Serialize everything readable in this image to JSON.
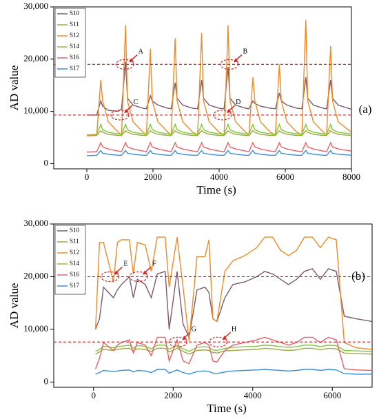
{
  "chart_data": [
    {
      "type": "line",
      "panel_label": "(a)",
      "x_label": "Time (s)",
      "y_label": "AD value",
      "xlim": [
        -1000,
        8000
      ],
      "xticks": [
        0,
        2000,
        4000,
        6000,
        8000
      ],
      "ylim": [
        -1000,
        30000
      ],
      "yticks": [
        {
          "value": 0,
          "label": "0"
        },
        {
          "value": 10000,
          "label": "10,000"
        },
        {
          "value": 20000,
          "label": "20,000"
        },
        {
          "value": 30000,
          "label": "30,000"
        }
      ],
      "ref_lines": [
        19000,
        9300
      ],
      "ref_color": "#e02020",
      "annotations": [
        {
          "text": "A",
          "x": 1150,
          "y": 19000
        },
        {
          "text": "B",
          "x": 4310,
          "y": 19000
        },
        {
          "text": "C",
          "x": 1000,
          "y": 9300
        },
        {
          "text": "D",
          "x": 4100,
          "y": 9300
        }
      ],
      "x": [
        0,
        300,
        420,
        480,
        650,
        950,
        1050,
        1170,
        1230,
        1400,
        1700,
        1800,
        1920,
        1980,
        2150,
        2450,
        2550,
        2670,
        2730,
        2900,
        3200,
        3350,
        3470,
        3530,
        3700,
        4000,
        4150,
        4270,
        4330,
        4500,
        4800,
        4900,
        5020,
        5080,
        5250,
        5550,
        5700,
        5820,
        5880,
        6050,
        6350,
        6500,
        6620,
        6680,
        6850,
        7150,
        7250,
        7370,
        7430,
        7600,
        8000
      ],
      "series": [
        {
          "name": "S10",
          "color": "#7b5a6b",
          "values": [
            9300,
            9300,
            12000,
            11000,
            10200,
            10000,
            10500,
            19500,
            12500,
            11200,
            10600,
            10500,
            13000,
            12000,
            11200,
            10600,
            10500,
            15500,
            12500,
            11200,
            10600,
            10500,
            16000,
            12500,
            11200,
            10600,
            10500,
            18500,
            12500,
            11200,
            10600,
            10500,
            12000,
            11500,
            11000,
            10600,
            10500,
            13500,
            12000,
            11200,
            10600,
            10500,
            16500,
            12500,
            11200,
            10600,
            10500,
            16000,
            12500,
            11200,
            10400
          ]
        },
        {
          "name": "S11",
          "color": "#9aab3a",
          "values": [
            5300,
            5400,
            6300,
            6000,
            5600,
            5400,
            5400,
            6300,
            6000,
            5600,
            5400,
            5400,
            6300,
            6000,
            5600,
            5400,
            5400,
            6300,
            6000,
            5600,
            5400,
            5400,
            6300,
            6000,
            5600,
            5400,
            5400,
            6300,
            6000,
            5600,
            5400,
            5400,
            6300,
            6000,
            5600,
            5400,
            5400,
            6300,
            6000,
            5600,
            5400,
            5400,
            6300,
            6000,
            5600,
            5400,
            5400,
            6300,
            6000,
            5600,
            5400
          ]
        },
        {
          "name": "S12",
          "color": "#f08a24",
          "values": [
            5300,
            5500,
            16000,
            12000,
            8000,
            6000,
            5500,
            26500,
            12000,
            8000,
            6000,
            5500,
            22000,
            12000,
            8000,
            6000,
            5500,
            24000,
            12000,
            8000,
            6000,
            5500,
            25000,
            12000,
            8000,
            6000,
            5500,
            26500,
            12000,
            8000,
            6000,
            5500,
            16500,
            12000,
            8000,
            6000,
            5500,
            19000,
            12000,
            8000,
            6000,
            5500,
            27500,
            12000,
            8000,
            6000,
            5500,
            22500,
            12000,
            8000,
            6000
          ]
        },
        {
          "name": "S14",
          "color": "#7ec83a",
          "values": [
            5500,
            5600,
            7500,
            6500,
            6000,
            5700,
            5600,
            7500,
            6500,
            6000,
            5700,
            5600,
            7500,
            6500,
            6000,
            5700,
            5600,
            7500,
            6500,
            6000,
            5700,
            5600,
            7500,
            6500,
            6000,
            5700,
            5600,
            7500,
            6500,
            6000,
            5700,
            5600,
            7500,
            6500,
            6000,
            5700,
            5600,
            7500,
            6500,
            6000,
            5700,
            5600,
            7500,
            6500,
            6000,
            5700,
            5600,
            7500,
            6500,
            6000,
            5700
          ]
        },
        {
          "name": "S16",
          "color": "#e8606a",
          "values": [
            2200,
            2300,
            4000,
            3200,
            2800,
            2400,
            2300,
            4000,
            3200,
            2800,
            2400,
            2300,
            4000,
            3200,
            2800,
            2400,
            2300,
            4000,
            3200,
            2800,
            2400,
            2300,
            4000,
            3200,
            2800,
            2400,
            2300,
            4000,
            3200,
            2800,
            2400,
            2300,
            4000,
            3200,
            2800,
            2400,
            2300,
            4000,
            3200,
            2800,
            2400,
            2300,
            4000,
            3200,
            2800,
            2400,
            2300,
            4000,
            3200,
            2800,
            2400
          ]
        },
        {
          "name": "S17",
          "color": "#3a8ee0",
          "values": [
            1500,
            1600,
            2500,
            2000,
            1800,
            1600,
            1600,
            2500,
            2000,
            1800,
            1600,
            1600,
            2500,
            2000,
            1800,
            1600,
            1600,
            2500,
            2000,
            1800,
            1600,
            1600,
            2500,
            2000,
            1800,
            1600,
            1600,
            2500,
            2000,
            1800,
            1600,
            1600,
            2500,
            2000,
            1800,
            1600,
            1600,
            2500,
            2000,
            1800,
            1600,
            1600,
            2500,
            2000,
            1800,
            1600,
            1600,
            2500,
            2000,
            1800,
            1600
          ]
        }
      ]
    },
    {
      "type": "line",
      "panel_label": "(b)",
      "x_label": "Time (s)",
      "y_label": "AD value",
      "xlim": [
        -1000,
        7000
      ],
      "xticks": [
        0,
        2000,
        4000,
        6000
      ],
      "ylim": [
        -1000,
        30000
      ],
      "yticks": [
        {
          "value": 0,
          "label": "0"
        },
        {
          "value": 10000,
          "label": "10,000"
        },
        {
          "value": 20000,
          "label": "20,000"
        },
        {
          "value": 30000,
          "label": "30,000"
        }
      ],
      "ref_lines": [
        20000,
        7600
      ],
      "ref_color": "#e02020",
      "annotations": [
        {
          "text": "E",
          "x": 410,
          "y": 20000
        },
        {
          "text": "F",
          "x": 1130,
          "y": 20000
        },
        {
          "text": "G",
          "x": 2120,
          "y": 7600
        },
        {
          "text": "H",
          "x": 3130,
          "y": 7600
        }
      ],
      "x": [
        50,
        150,
        250,
        500,
        600,
        700,
        900,
        1000,
        1100,
        1300,
        1450,
        1600,
        1800,
        1900,
        2100,
        2250,
        2400,
        2600,
        2800,
        2900,
        3000,
        3100,
        3300,
        3500,
        3800,
        4100,
        4300,
        4500,
        4700,
        4900,
        5100,
        5300,
        5500,
        5700,
        5900,
        6100,
        6300,
        6600,
        7000
      ],
      "series": [
        {
          "name": "S10",
          "color": "#7b5a6b",
          "values": [
            10000,
            12000,
            18000,
            16000,
            17500,
            18500,
            20000,
            16000,
            19500,
            18500,
            16000,
            20500,
            21000,
            10000,
            21000,
            11000,
            8500,
            17500,
            18000,
            17000,
            12000,
            11500,
            16000,
            18500,
            19000,
            20000,
            21000,
            20500,
            19500,
            18500,
            19500,
            21000,
            21500,
            19500,
            21500,
            21000,
            12500,
            12000,
            11500
          ]
        },
        {
          "name": "S11",
          "color": "#9aab3a",
          "values": [
            5300,
            5700,
            6200,
            6000,
            6200,
            6300,
            6400,
            5900,
            6300,
            6200,
            5800,
            6400,
            6400,
            5700,
            6400,
            5800,
            5300,
            6000,
            6100,
            6000,
            5600,
            5500,
            5900,
            6000,
            6100,
            6200,
            6400,
            6300,
            6100,
            6000,
            6100,
            6400,
            6400,
            6100,
            6400,
            6300,
            5500,
            5400,
            5300
          ]
        },
        {
          "name": "S12",
          "color": "#f08a24",
          "values": [
            10000,
            26500,
            26500,
            19000,
            26500,
            27000,
            27000,
            20500,
            26500,
            26000,
            21000,
            27500,
            27500,
            18000,
            27500,
            18000,
            7800,
            23800,
            23800,
            27000,
            12000,
            11500,
            21000,
            23000,
            24000,
            25500,
            27500,
            27500,
            25000,
            24000,
            25000,
            27500,
            27500,
            25500,
            27500,
            27000,
            7500,
            6500,
            6200
          ]
        },
        {
          "name": "S14",
          "color": "#7ec83a",
          "values": [
            5800,
            6200,
            6800,
            6500,
            6700,
            6800,
            7000,
            6400,
            6900,
            6800,
            6300,
            7000,
            7000,
            6200,
            7000,
            6300,
            5800,
            6600,
            6700,
            6600,
            6100,
            6000,
            6400,
            6600,
            6700,
            6800,
            7000,
            6900,
            6700,
            6600,
            6700,
            7000,
            7000,
            6700,
            7000,
            6900,
            6000,
            5900,
            5800
          ]
        },
        {
          "name": "S16",
          "color": "#e8606a",
          "values": [
            2500,
            4500,
            7500,
            6000,
            7000,
            7500,
            8000,
            5500,
            7500,
            7000,
            5000,
            8500,
            8500,
            4000,
            8000,
            4000,
            3500,
            7000,
            7500,
            7000,
            4000,
            3800,
            6000,
            7000,
            7500,
            8000,
            8500,
            8000,
            7500,
            7000,
            7500,
            8500,
            8500,
            7500,
            8500,
            8000,
            2500,
            2300,
            2200
          ]
        },
        {
          "name": "S17",
          "color": "#3a8ee0",
          "values": [
            1500,
            1800,
            2200,
            2000,
            2100,
            2200,
            2300,
            1900,
            2200,
            2100,
            1800,
            2400,
            2400,
            1700,
            2300,
            1800,
            1500,
            2000,
            2100,
            2000,
            1700,
            1600,
            1900,
            2100,
            2200,
            2300,
            2400,
            2300,
            2200,
            2100,
            2200,
            2400,
            2400,
            2200,
            2400,
            2300,
            1600,
            1500,
            1500
          ]
        }
      ]
    }
  ]
}
